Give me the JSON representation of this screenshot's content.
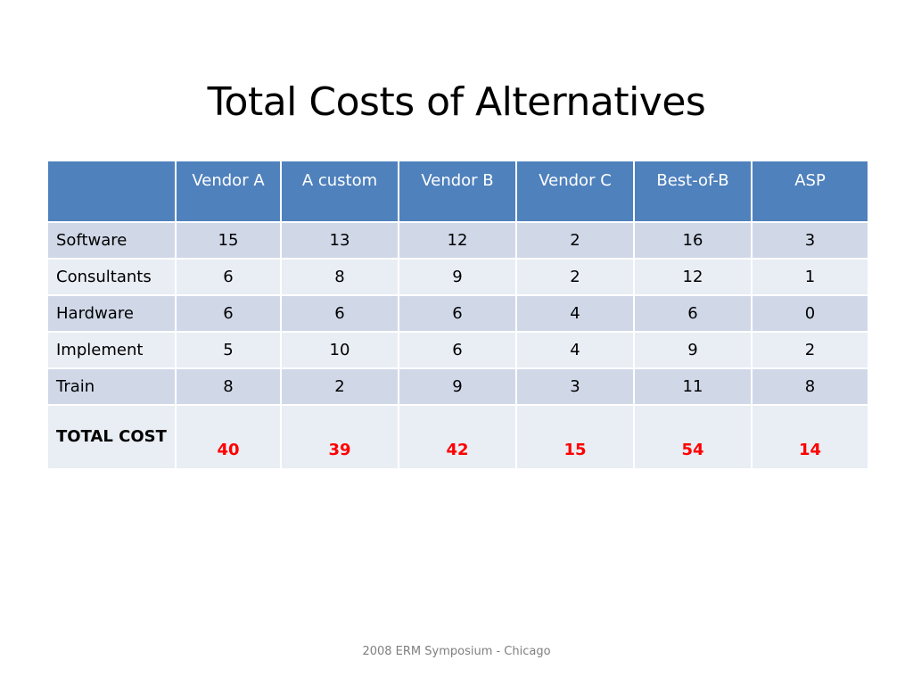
{
  "title": "Total Costs of Alternatives",
  "table": {
    "corner": "",
    "columns": [
      "Vendor A",
      "A custom",
      "Vendor B",
      "Vendor C",
      "Best-of-B",
      "ASP"
    ],
    "rows": [
      {
        "label": "Software",
        "values": [
          "15",
          "13",
          "12",
          "2",
          "16",
          "3"
        ]
      },
      {
        "label": "Consultants",
        "values": [
          "6",
          "8",
          "9",
          "2",
          "12",
          "1"
        ]
      },
      {
        "label": "Hardware",
        "values": [
          "6",
          "6",
          "6",
          "4",
          "6",
          "0"
        ]
      },
      {
        "label": "Implement",
        "values": [
          "5",
          "10",
          "6",
          "4",
          "9",
          "2"
        ]
      },
      {
        "label": "Train",
        "values": [
          "8",
          "2",
          "9",
          "3",
          "11",
          "8"
        ]
      }
    ],
    "total": {
      "label": "TOTAL COST",
      "values": [
        "40",
        "39",
        "42",
        "15",
        "54",
        "14"
      ]
    }
  },
  "footer": "2008 ERM Symposium - Chicago",
  "colors": {
    "header_bg": "#4f81bd",
    "row_dark": "#d0d8e8",
    "row_light": "#e9edf4",
    "total_value": "#ff0000",
    "footer_text": "#7f7f7f"
  }
}
